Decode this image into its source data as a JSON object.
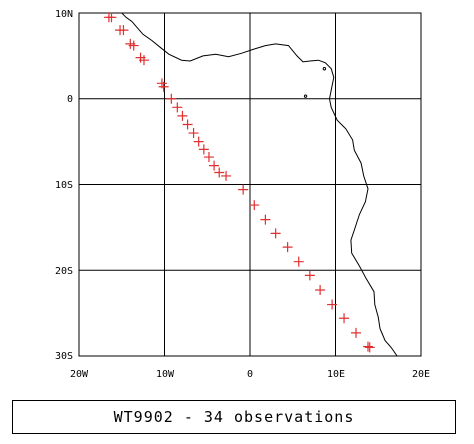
{
  "map": {
    "lon_range": [
      -20,
      20
    ],
    "lat_range": [
      -30,
      10
    ],
    "grid": true,
    "grid_lons": [
      -20,
      -10,
      0,
      10,
      20
    ],
    "grid_lats": [
      -30,
      -20,
      -10,
      0,
      10
    ],
    "lon_tick_labels": [
      "20W",
      "10W",
      "0",
      "10E",
      "20E"
    ],
    "lat_tick_labels": [
      "30S",
      "20S",
      "10S",
      "0",
      "10N"
    ],
    "marker_symbol": "+",
    "marker_color": "#e03030",
    "coast_color": "#000000"
  },
  "observations": [
    {
      "lon": -16.5,
      "lat": 9.5
    },
    {
      "lon": -16.2,
      "lat": 9.5
    },
    {
      "lon": -15.2,
      "lat": 8.0
    },
    {
      "lon": -14.8,
      "lat": 8.0
    },
    {
      "lon": -14.0,
      "lat": 6.4
    },
    {
      "lon": -13.6,
      "lat": 6.2
    },
    {
      "lon": -12.8,
      "lat": 4.8
    },
    {
      "lon": -12.4,
      "lat": 4.5
    },
    {
      "lon": -10.3,
      "lat": 1.8
    },
    {
      "lon": -10.1,
      "lat": 1.4
    },
    {
      "lon": -9.2,
      "lat": 0.0
    },
    {
      "lon": -8.5,
      "lat": -1.0
    },
    {
      "lon": -7.9,
      "lat": -2.0
    },
    {
      "lon": -7.3,
      "lat": -3.0
    },
    {
      "lon": -6.6,
      "lat": -4.0
    },
    {
      "lon": -6.0,
      "lat": -5.0
    },
    {
      "lon": -5.4,
      "lat": -5.9
    },
    {
      "lon": -4.8,
      "lat": -6.8
    },
    {
      "lon": -4.2,
      "lat": -7.8
    },
    {
      "lon": -3.6,
      "lat": -8.6
    },
    {
      "lon": -2.8,
      "lat": -9.0
    },
    {
      "lon": -0.8,
      "lat": -10.6
    },
    {
      "lon": 0.5,
      "lat": -12.4
    },
    {
      "lon": 1.8,
      "lat": -14.1
    },
    {
      "lon": 3.0,
      "lat": -15.7
    },
    {
      "lon": 4.4,
      "lat": -17.3
    },
    {
      "lon": 5.7,
      "lat": -19.0
    },
    {
      "lon": 7.0,
      "lat": -20.6
    },
    {
      "lon": 8.2,
      "lat": -22.3
    },
    {
      "lon": 9.6,
      "lat": -24.0
    },
    {
      "lon": 11.0,
      "lat": -25.6
    },
    {
      "lon": 12.4,
      "lat": -27.3
    },
    {
      "lon": 13.8,
      "lat": -28.9
    },
    {
      "lon": 14.0,
      "lat": -29.0
    }
  ],
  "coastline": [
    [
      -15.0,
      10.0
    ],
    [
      -14.5,
      9.5
    ],
    [
      -13.8,
      9.0
    ],
    [
      -13.2,
      8.3
    ],
    [
      -12.5,
      7.5
    ],
    [
      -11.5,
      6.8
    ],
    [
      -10.5,
      6.0
    ],
    [
      -9.5,
      5.2
    ],
    [
      -8.0,
      4.5
    ],
    [
      -7.0,
      4.4
    ],
    [
      -5.5,
      5.0
    ],
    [
      -4.0,
      5.2
    ],
    [
      -2.5,
      4.9
    ],
    [
      -1.0,
      5.3
    ],
    [
      0.5,
      5.8
    ],
    [
      1.8,
      6.2
    ],
    [
      3.0,
      6.4
    ],
    [
      4.5,
      6.2
    ],
    [
      5.5,
      5.0
    ],
    [
      6.2,
      4.3
    ],
    [
      7.0,
      4.4
    ],
    [
      8.0,
      4.5
    ],
    [
      8.8,
      4.2
    ],
    [
      9.5,
      3.5
    ],
    [
      9.8,
      2.5
    ],
    [
      9.5,
      1.0
    ],
    [
      9.3,
      0.0
    ],
    [
      9.5,
      -1.0
    ],
    [
      10.2,
      -2.5
    ],
    [
      11.2,
      -3.5
    ],
    [
      12.0,
      -4.8
    ],
    [
      12.2,
      -6.0
    ],
    [
      13.0,
      -7.5
    ],
    [
      13.3,
      -9.0
    ],
    [
      13.8,
      -10.5
    ],
    [
      13.5,
      -12.0
    ],
    [
      12.8,
      -13.5
    ],
    [
      12.3,
      -15.0
    ],
    [
      11.8,
      -16.5
    ],
    [
      11.9,
      -18.0
    ],
    [
      12.8,
      -19.5
    ],
    [
      13.6,
      -21.0
    ],
    [
      14.5,
      -22.5
    ],
    [
      14.6,
      -24.0
    ],
    [
      15.0,
      -25.5
    ],
    [
      15.2,
      -26.8
    ],
    [
      15.8,
      -28.2
    ],
    [
      16.5,
      -29.0
    ],
    [
      17.2,
      -30.0
    ]
  ],
  "caption": {
    "text": "WT9902 - 34 observations"
  }
}
